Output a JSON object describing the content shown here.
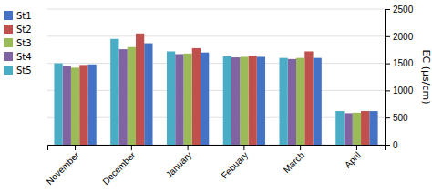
{
  "chart_data": {
    "type": "bar",
    "categories": [
      "November",
      "December",
      "January",
      "Febuary",
      "March",
      "April"
    ],
    "series": [
      {
        "name": "St1",
        "color": "#4472c4",
        "values": [
          1480,
          1870,
          1700,
          1620,
          1600,
          620
        ]
      },
      {
        "name": "St2",
        "color": "#c0504d",
        "values": [
          1470,
          2050,
          1780,
          1640,
          1720,
          620
        ]
      },
      {
        "name": "St3",
        "color": "#9bbb59",
        "values": [
          1420,
          1800,
          1680,
          1620,
          1600,
          590
        ]
      },
      {
        "name": "St4",
        "color": "#8064a2",
        "values": [
          1460,
          1760,
          1670,
          1610,
          1580,
          580
        ]
      },
      {
        "name": "St5",
        "color": "#4bacc6",
        "values": [
          1500,
          1950,
          1720,
          1630,
          1600,
          620
        ]
      }
    ],
    "y_label": "EC (µs/cm)",
    "ylim": [
      0,
      2500
    ],
    "yticks": [
      0,
      500,
      1000,
      1500,
      2000,
      2500
    ],
    "grid": true,
    "legend": "left"
  }
}
